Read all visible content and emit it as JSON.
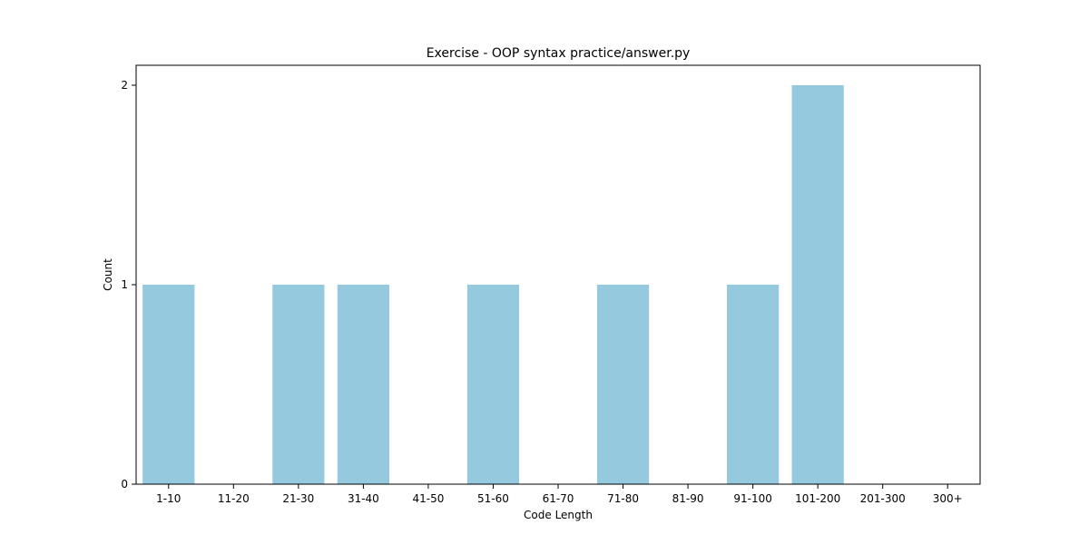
{
  "chart_data": {
    "type": "bar",
    "title": "Exercise - OOP syntax practice/answer.py",
    "xlabel": "Code Length",
    "ylabel": "Count",
    "categories": [
      "1-10",
      "11-20",
      "21-30",
      "31-40",
      "41-50",
      "51-60",
      "61-70",
      "71-80",
      "81-90",
      "91-100",
      "101-200",
      "201-300",
      "300+"
    ],
    "values": [
      1,
      0,
      1,
      1,
      0,
      1,
      0,
      1,
      0,
      1,
      2,
      0,
      0
    ],
    "ylim": [
      0,
      2.1
    ],
    "yticks": [
      0,
      1,
      2
    ],
    "grid": false,
    "bar_color": "#95c9de"
  }
}
